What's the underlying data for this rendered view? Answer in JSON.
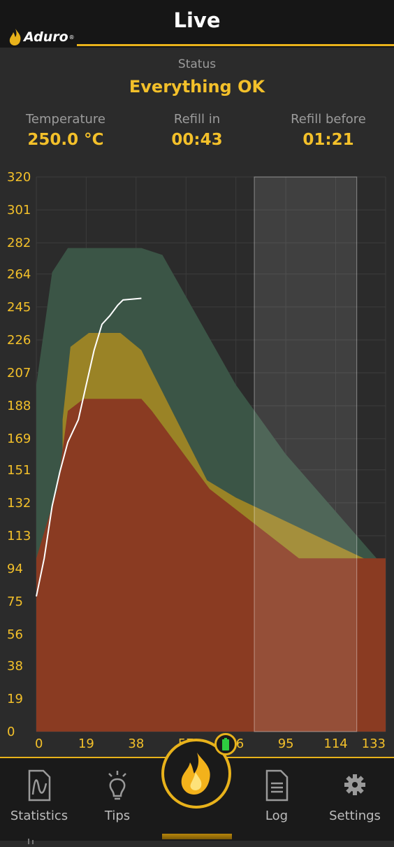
{
  "header": {
    "title": "Live",
    "logo_text": "Aduro",
    "logo_mark": "®"
  },
  "status": {
    "label": "Status",
    "value": "Everything OK"
  },
  "metrics": [
    {
      "label": "Temperature",
      "value": "250.0 °C"
    },
    {
      "label": "Refill in",
      "value": "00:43"
    },
    {
      "label": "Refill before",
      "value": "01:21"
    }
  ],
  "colors": {
    "accent": "#f3c02a",
    "green_zone": "#3b5546",
    "yellow_zone": "#9a8326",
    "red_zone": "#8a3b22",
    "line": "#ffffff"
  },
  "chart_data": {
    "type": "area",
    "xlim": [
      0,
      133
    ],
    "ylim": [
      0,
      320
    ],
    "x_ticks": [
      0,
      19,
      38,
      57,
      76,
      95,
      114,
      133
    ],
    "y_ticks": [
      0,
      19,
      38,
      56,
      75,
      94,
      113,
      132,
      151,
      169,
      188,
      207,
      226,
      245,
      264,
      282,
      301,
      320
    ],
    "grid": true,
    "highlight_range": [
      83,
      122
    ],
    "zones": [
      {
        "id": "green",
        "points": [
          [
            0,
            200
          ],
          [
            6,
            265
          ],
          [
            12,
            279
          ],
          [
            40,
            279
          ],
          [
            48,
            275
          ],
          [
            76,
            200
          ],
          [
            95,
            160
          ],
          [
            133,
            94
          ],
          [
            133,
            0
          ],
          [
            0,
            0
          ]
        ]
      },
      {
        "id": "yellow",
        "points": [
          [
            10,
            180
          ],
          [
            13,
            222
          ],
          [
            20,
            230
          ],
          [
            32,
            230
          ],
          [
            40,
            220
          ],
          [
            65,
            145
          ],
          [
            76,
            135
          ],
          [
            133,
            94
          ],
          [
            133,
            0
          ],
          [
            10,
            0
          ]
        ]
      },
      {
        "id": "red",
        "points": [
          [
            0,
            100
          ],
          [
            8,
            140
          ],
          [
            12,
            185
          ],
          [
            18,
            192
          ],
          [
            40,
            192
          ],
          [
            44,
            185
          ],
          [
            66,
            140
          ],
          [
            100,
            100
          ],
          [
            133,
            100
          ],
          [
            133,
            0
          ],
          [
            0,
            0
          ]
        ]
      }
    ],
    "temperature_series": [
      [
        0,
        78
      ],
      [
        3,
        100
      ],
      [
        6,
        130
      ],
      [
        9,
        150
      ],
      [
        12,
        167
      ],
      [
        16,
        180
      ],
      [
        19,
        200
      ],
      [
        22,
        220
      ],
      [
        25,
        235
      ],
      [
        28,
        240
      ],
      [
        31,
        246
      ],
      [
        33,
        249
      ],
      [
        40,
        250
      ]
    ]
  },
  "nav": {
    "items": [
      {
        "label": "Statistics",
        "icon": "statistics-icon"
      },
      {
        "label": "Tips",
        "icon": "lightbulb-icon"
      },
      {
        "label": "Log",
        "icon": "document-icon"
      },
      {
        "label": "Settings",
        "icon": "gear-icon"
      }
    ],
    "fab_icon": "flame-icon",
    "battery_icon": "battery-icon"
  }
}
